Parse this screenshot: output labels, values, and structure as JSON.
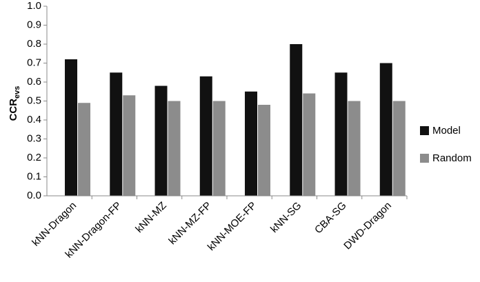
{
  "chart_data": {
    "type": "bar",
    "y_label": "CCR",
    "y_label_subscript": "evs",
    "categories": [
      "kNN-Dragon",
      "kNN-Dragon-FP",
      "kNN-MZ",
      "kNN-MZ-FP",
      "kNN-MOE-FP",
      "kNN-SG",
      "CBA-SG",
      "DWD-Dragon"
    ],
    "series": [
      {
        "name": "Model",
        "color": "#111111",
        "values": [
          0.72,
          0.65,
          0.58,
          0.63,
          0.55,
          0.8,
          0.65,
          0.7
        ]
      },
      {
        "name": "Random",
        "color": "#8c8c8c",
        "values": [
          0.49,
          0.53,
          0.5,
          0.5,
          0.48,
          0.54,
          0.5,
          0.5
        ]
      }
    ],
    "ylim": [
      0,
      1
    ],
    "yticks": [
      {
        "value": 0,
        "label": "0.0"
      },
      0.1,
      0.2,
      0.3,
      0.4,
      0.5,
      0.6,
      0.7,
      0.8,
      0.9,
      {
        "value": 1,
        "label": "1.0"
      }
    ],
    "grid": false,
    "legend": "right"
  }
}
